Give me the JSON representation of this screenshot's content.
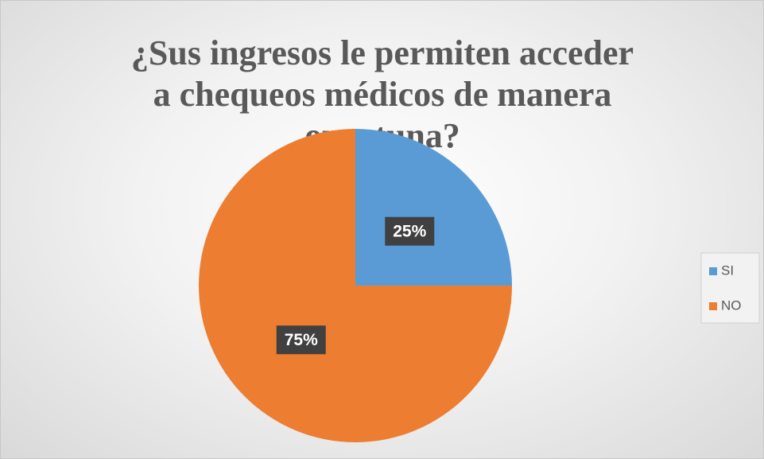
{
  "chart_data": {
    "type": "pie",
    "title": "¿Sus ingresos le permiten acceder a chequeos médicos de manera oportuna?",
    "categories": [
      "SI",
      "NO"
    ],
    "values": [
      25,
      75
    ],
    "value_labels": [
      "25%",
      "75%"
    ],
    "colors": [
      "#5b9bd5",
      "#ed7d31"
    ],
    "legend": "right"
  }
}
